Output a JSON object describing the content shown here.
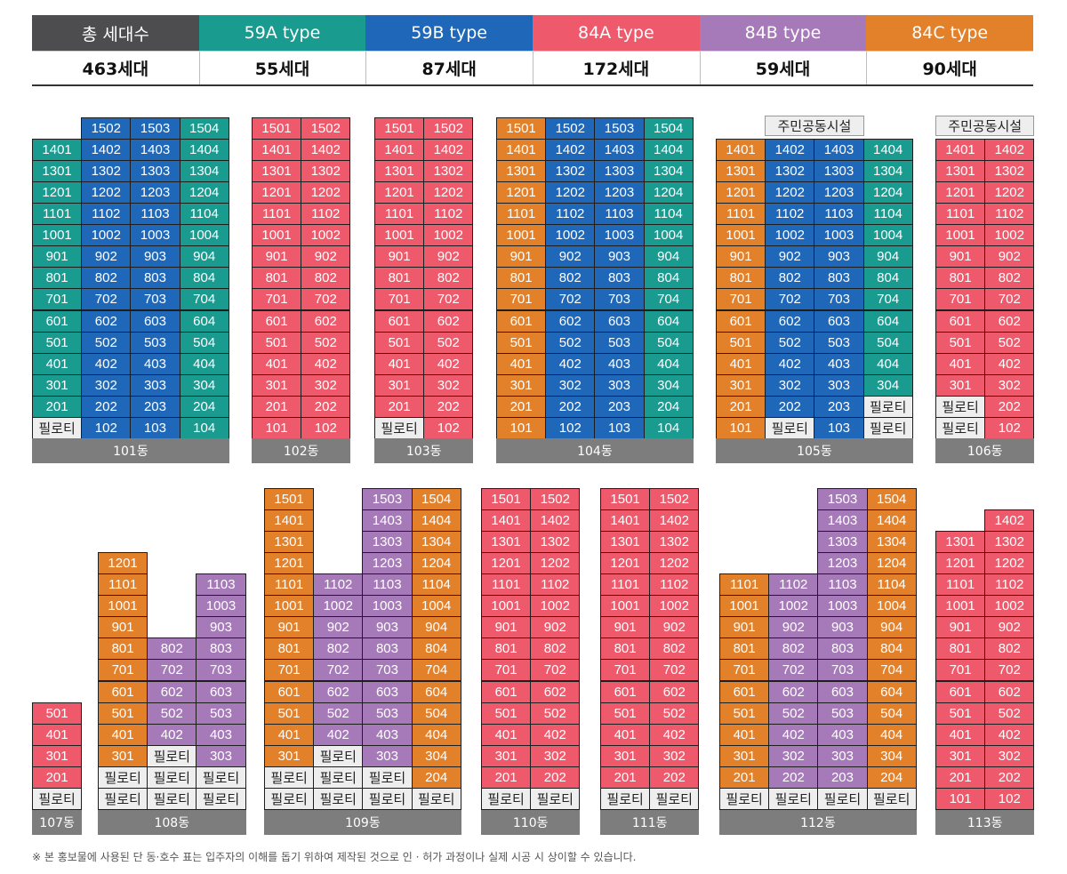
{
  "colors": {
    "total": "#4d4d4f",
    "59A": "#1a9b90",
    "59B": "#1f68b9",
    "84A": "#ee5a6c",
    "84B": "#a67ab8",
    "84C": "#e3812b",
    "pilotis": "#eeeeee",
    "label": "#7d7d7d"
  },
  "legend": [
    {
      "key": "total",
      "label": "총 세대수",
      "value": "463세대"
    },
    {
      "key": "59A",
      "label": "59A type",
      "value": "55세대"
    },
    {
      "key": "59B",
      "label": "59B type",
      "value": "87세대"
    },
    {
      "key": "84A",
      "label": "84A type",
      "value": "172세대"
    },
    {
      "key": "84B",
      "label": "84B type",
      "value": "59세대"
    },
    {
      "key": "84C",
      "label": "84C type",
      "value": "90세대"
    }
  ],
  "labels": {
    "pilotis": "필로티",
    "facility": "주민공동시설"
  },
  "buildings": [
    {
      "name": "101동",
      "columns": [
        {
          "types": [
            "59A"
          ],
          "bottom_floor": 2,
          "top_floor": 14,
          "ground": "P"
        },
        {
          "types": [
            "59B"
          ],
          "bottom_floor": 1,
          "top_floor": 15
        },
        {
          "types": [
            "59B"
          ],
          "bottom_floor": 1,
          "top_floor": 15
        },
        {
          "types": [
            "59A"
          ],
          "bottom_floor": 1,
          "top_floor": 15
        }
      ]
    },
    {
      "name": "102동",
      "columns": [
        {
          "types": [
            "84A"
          ],
          "bottom_floor": 1,
          "top_floor": 15
        },
        {
          "types": [
            "84A"
          ],
          "bottom_floor": 1,
          "top_floor": 15
        }
      ]
    },
    {
      "name": "103동",
      "columns": [
        {
          "types": [
            "84A"
          ],
          "bottom_floor": 2,
          "top_floor": 15,
          "ground": "P"
        },
        {
          "types": [
            "84A"
          ],
          "bottom_floor": 1,
          "top_floor": 15
        }
      ]
    },
    {
      "name": "104동",
      "columns": [
        {
          "types": [
            "84C"
          ],
          "bottom_floor": 1,
          "top_floor": 15
        },
        {
          "types": [
            "59B"
          ],
          "bottom_floor": 1,
          "top_floor": 15
        },
        {
          "types": [
            "59B"
          ],
          "bottom_floor": 1,
          "top_floor": 15
        },
        {
          "types": [
            "59A"
          ],
          "bottom_floor": 1,
          "top_floor": 15
        }
      ]
    },
    {
      "name": "105동",
      "facility": [
        1,
        2
      ],
      "columns": [
        {
          "types": [
            "84C"
          ],
          "bottom_floor": 1,
          "top_floor": 14
        },
        {
          "types": [
            "59B"
          ],
          "bottom_floor": 2,
          "top_floor": 14,
          "ground": "P"
        },
        {
          "types": [
            "59B"
          ],
          "bottom_floor": 1,
          "top_floor": 14
        },
        {
          "types": [
            "59A"
          ],
          "bottom_floor": 3,
          "top_floor": 14,
          "ground": "PP"
        }
      ]
    },
    {
      "name": "106동",
      "facility": [
        0,
        1
      ],
      "columns": [
        {
          "types": [
            "84A"
          ],
          "bottom_floor": 3,
          "top_floor": 14,
          "ground": "PP"
        },
        {
          "types": [
            "84A"
          ],
          "bottom_floor": 1,
          "top_floor": 14
        }
      ]
    },
    {
      "name": "107동",
      "columns": [
        {
          "types": [
            "84A"
          ],
          "bottom_floor": 2,
          "top_floor": 5,
          "ground": "P"
        }
      ]
    },
    {
      "name": "108동",
      "columns": [
        {
          "types": [
            "84C"
          ],
          "bottom_floor": 3,
          "top_floor": 12,
          "ground": "PP"
        },
        {
          "types": [
            "84B"
          ],
          "bottom_floor": 4,
          "top_floor": 8,
          "ground": "PPP"
        },
        {
          "types": [
            "84B"
          ],
          "bottom_floor": 3,
          "top_floor": 11,
          "ground": "PP"
        }
      ]
    },
    {
      "name": "109동",
      "columns": [
        {
          "types": [
            "84C"
          ],
          "bottom_floor": 3,
          "top_floor": 15,
          "ground": "PP"
        },
        {
          "types": [
            "84B"
          ],
          "bottom_floor": 4,
          "top_floor": 11,
          "ground": "PPP"
        },
        {
          "types": [
            "84B"
          ],
          "bottom_floor": 3,
          "top_floor": 15,
          "ground": "PP"
        },
        {
          "types": [
            "84C"
          ],
          "bottom_floor": 2,
          "top_floor": 15,
          "ground": "P"
        }
      ]
    },
    {
      "name": "110동",
      "columns": [
        {
          "types": [
            "84A"
          ],
          "bottom_floor": 2,
          "top_floor": 15,
          "ground": "P"
        },
        {
          "types": [
            "84A"
          ],
          "bottom_floor": 2,
          "top_floor": 15,
          "ground": "P"
        }
      ]
    },
    {
      "name": "111동",
      "columns": [
        {
          "types": [
            "84A"
          ],
          "bottom_floor": 2,
          "top_floor": 15,
          "ground": "P"
        },
        {
          "types": [
            "84A"
          ],
          "bottom_floor": 2,
          "top_floor": 15,
          "ground": "P"
        }
      ]
    },
    {
      "name": "112동",
      "columns": [
        {
          "types": [
            "84C"
          ],
          "bottom_floor": 2,
          "top_floor": 11,
          "ground": "P"
        },
        {
          "types": [
            "84B"
          ],
          "bottom_floor": 2,
          "top_floor": 11,
          "ground": "P"
        },
        {
          "types": [
            "84B"
          ],
          "bottom_floor": 2,
          "top_floor": 15,
          "ground": "P"
        },
        {
          "types": [
            "84C"
          ],
          "bottom_floor": 2,
          "top_floor": 15,
          "ground": "P"
        }
      ]
    },
    {
      "name": "113동",
      "columns": [
        {
          "types": [
            "84A"
          ],
          "bottom_floor": 1,
          "top_floor": 13
        },
        {
          "types": [
            "84A"
          ],
          "bottom_floor": 1,
          "top_floor": 14
        }
      ]
    }
  ],
  "footnote": "※ 본 홍보물에 사용된 단 동·호수 표는 입주자의 이해를 돕기 위하여 제작된 것으로 인 · 허가 과정이나 실제 시공 시 상이할 수 있습니다."
}
